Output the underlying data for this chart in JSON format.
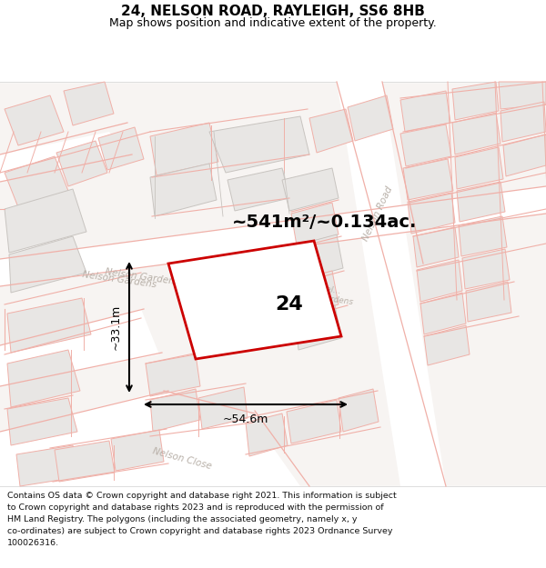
{
  "title": "24, NELSON ROAD, RAYLEIGH, SS6 8HB",
  "subtitle": "Map shows position and indicative extent of the property.",
  "footnote_lines": [
    "Contains OS data © Crown copyright and database right 2021. This information is subject",
    "to Crown copyright and database rights 2023 and is reproduced with the permission of",
    "HM Land Registry. The polygons (including the associated geometry, namely x, y",
    "co-ordinates) are subject to Crown copyright and database rights 2023 Ordnance Survey",
    "100026316."
  ],
  "area_text": "~541m²/~0.134ac.",
  "label_24": "24",
  "dim_width": "~54.6m",
  "dim_height": "~33.1m",
  "map_bg": "#f7f4f2",
  "road_bg": "#ffffff",
  "building_fill": "#e8e6e4",
  "building_edge_gray": "#c8c4c0",
  "building_edge_pink": "#e8b0a8",
  "street_line_pink": "#f0b0a8",
  "street_label_color": "#b8b0a8",
  "property_fill": "#ffffff",
  "property_edge": "#cc0000",
  "title_color": "#000000",
  "footnote_color": "#111111",
  "dim_color": "#000000",
  "title_fontsize": 11,
  "subtitle_fontsize": 9,
  "area_fontsize": 14,
  "label_fontsize": 16,
  "dim_fontsize": 9,
  "footnote_fontsize": 6.8,
  "street_label_fontsize": 7.5
}
